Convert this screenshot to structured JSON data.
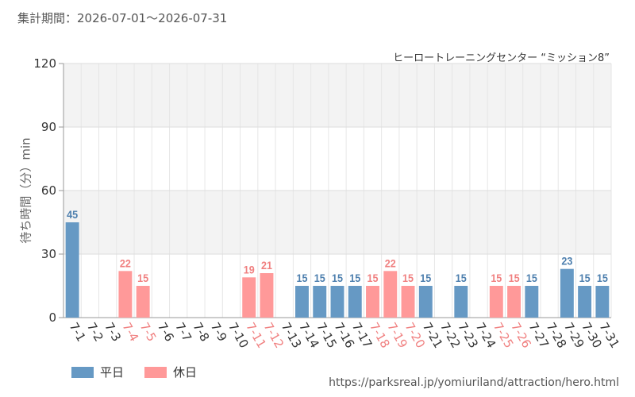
{
  "period_label": "集計期間：2026-07-01～2026-07-31",
  "source_url": "https://parksreal.jp/yomiuriland/attraction/hero.html",
  "colors": {
    "weekday": "#6699c4",
    "holiday": "#ff9999",
    "weekday_label": "#4d7fae",
    "holiday_label": "#f08080"
  },
  "legend": [
    {
      "label": "平日",
      "color": "#6699c4"
    },
    {
      "label": "休日",
      "color": "#ff9999"
    }
  ],
  "chart_data": {
    "type": "bar",
    "title": "ヒーロートレーニングセンター “ミッション8”",
    "ylabel": "待ち時間（分）min",
    "xlabel": "",
    "ylim": [
      0,
      120
    ],
    "yticks": [
      0,
      30,
      60,
      90,
      120
    ],
    "grid": true,
    "legend_position": "bottom-left",
    "categories": [
      "7-1",
      "7-2",
      "7-3",
      "7-4",
      "7-5",
      "7-6",
      "7-7",
      "7-8",
      "7-9",
      "7-10",
      "7-11",
      "7-12",
      "7-13",
      "7-14",
      "7-15",
      "7-16",
      "7-17",
      "7-18",
      "7-19",
      "7-20",
      "7-21",
      "7-22",
      "7-23",
      "7-24",
      "7-25",
      "7-26",
      "7-27",
      "7-28",
      "7-29",
      "7-30",
      "7-31"
    ],
    "day_type": [
      "平日",
      "平日",
      "平日",
      "休日",
      "休日",
      "平日",
      "平日",
      "平日",
      "平日",
      "平日",
      "休日",
      "休日",
      "平日",
      "平日",
      "平日",
      "平日",
      "平日",
      "休日",
      "休日",
      "休日",
      "平日",
      "平日",
      "平日",
      "平日",
      "休日",
      "休日",
      "平日",
      "平日",
      "平日",
      "平日",
      "平日"
    ],
    "values": [
      45,
      null,
      null,
      22,
      15,
      null,
      null,
      null,
      null,
      null,
      19,
      21,
      null,
      15,
      15,
      15,
      15,
      15,
      22,
      15,
      15,
      null,
      15,
      null,
      15,
      15,
      15,
      null,
      23,
      15,
      15
    ]
  }
}
